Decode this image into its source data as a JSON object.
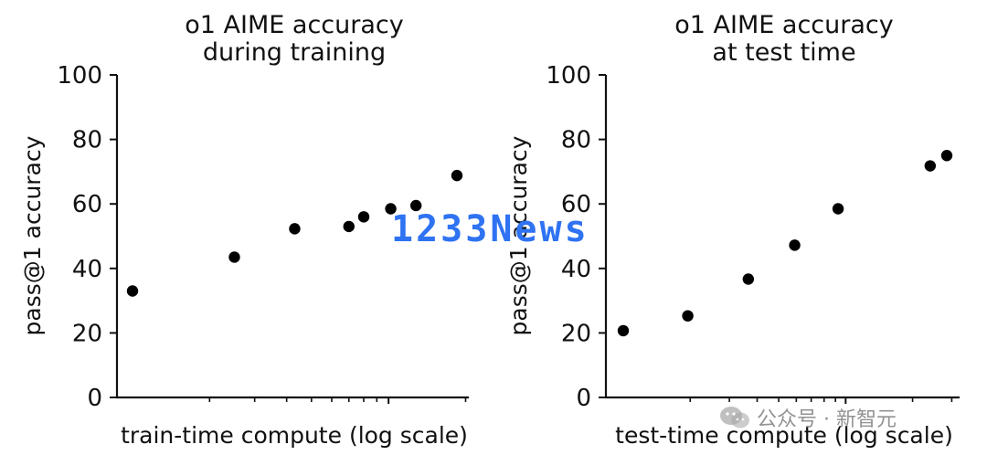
{
  "chart_data": [
    {
      "type": "scatter",
      "title": "o1 AIME accuracy",
      "subtitle": "during training",
      "xlabel": "train-time compute (log scale)",
      "ylabel": "pass@1 accuracy",
      "xscale": "log",
      "ylim": [
        0,
        100
      ],
      "yticks": [
        "0",
        "20",
        "40",
        "60",
        "80",
        "100"
      ],
      "grid": false,
      "x": [
        1.0,
        2.5,
        4.3,
        7.0,
        8.0,
        10.2,
        12.8,
        18.5
      ],
      "y": [
        33,
        43.5,
        52.3,
        53,
        56,
        58.5,
        59.5,
        68.8
      ]
    },
    {
      "type": "scatter",
      "title": "o1 AIME accuracy",
      "subtitle": "at test time",
      "xlabel": "test-time compute (log scale)",
      "ylabel": "pass@1 accuracy",
      "xscale": "log",
      "ylim": [
        0,
        100
      ],
      "yticks": [
        "0",
        "20",
        "40",
        "60",
        "80",
        "100"
      ],
      "grid": false,
      "x": [
        1.0,
        1.95,
        3.65,
        5.9,
        9.25,
        24.0,
        28.5
      ],
      "y": [
        20.7,
        25.3,
        36.7,
        47.2,
        58.5,
        71.8,
        75
      ]
    }
  ],
  "watermark": {
    "text": "1233News"
  },
  "wechat_watermark": {
    "text": "公众号 · 新智元"
  }
}
